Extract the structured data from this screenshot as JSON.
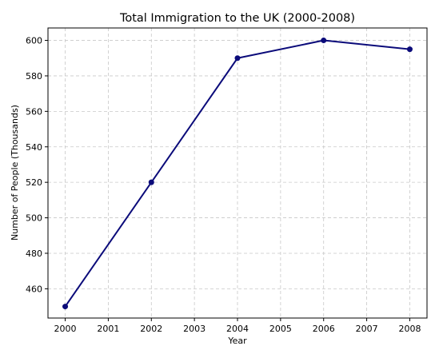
{
  "chart_data": {
    "type": "line",
    "title": "Total Immigration to the UK (2000-2008)",
    "xlabel": "Year",
    "ylabel": "Number of People (Thousands)",
    "x": [
      2000,
      2002,
      2004,
      2006,
      2008
    ],
    "series": [
      {
        "values": [
          450,
          520,
          590,
          600,
          595
        ],
        "color": "#0b0b7a"
      }
    ],
    "xticks": [
      2000,
      2001,
      2002,
      2003,
      2004,
      2005,
      2006,
      2007,
      2008
    ],
    "yticks": [
      460,
      480,
      500,
      520,
      540,
      560,
      580,
      600
    ],
    "xlim": [
      1999.6,
      2008.4
    ],
    "ylim": [
      443.5,
      607
    ],
    "grid": true,
    "legend": "none"
  }
}
